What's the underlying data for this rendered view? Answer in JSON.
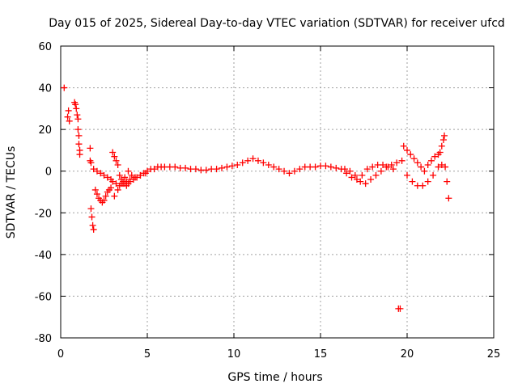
{
  "chart_data": {
    "type": "scatter",
    "title": "Day 015 of 2025, Sidereal Day-to-day VTEC variation (SDTVAR) for receiver ufcd",
    "xlabel": "GPS time / hours",
    "ylabel": "SDTVAR / TECUs",
    "xlim": [
      0,
      25
    ],
    "ylim": [
      -80,
      60
    ],
    "x_ticks": [
      0,
      5,
      10,
      15,
      20,
      25
    ],
    "y_ticks": [
      -80,
      -60,
      -40,
      -20,
      0,
      20,
      40,
      60
    ],
    "x_tick_labels": [
      "0",
      "5",
      "10",
      "15",
      "20",
      "25"
    ],
    "y_tick_labels": [
      "-80",
      "-60",
      "-40",
      "-20",
      "0",
      "20",
      "40",
      "60"
    ],
    "grid": true,
    "marker": "+",
    "colors": {
      "series": "#ff0000",
      "grid": "#a0a0a0",
      "axis": "#000000"
    },
    "series": [
      {
        "name": "SDTVAR",
        "x": [
          0.2,
          0.4,
          0.45,
          0.5,
          0.8,
          0.85,
          0.9,
          0.95,
          1.0,
          1.0,
          1.05,
          1.05,
          1.1,
          1.1,
          1.7,
          1.7,
          1.75,
          1.75,
          1.8,
          1.85,
          1.9,
          2.0,
          2.1,
          2.2,
          2.3,
          2.4,
          2.5,
          2.6,
          2.7,
          2.8,
          2.9,
          3.0,
          3.1,
          3.2,
          3.3,
          3.4,
          3.5,
          3.6,
          3.7,
          3.8,
          3.9,
          4.0,
          4.2,
          4.4,
          4.6,
          4.8,
          5.0,
          5.2,
          5.4,
          5.6,
          5.8,
          6.0,
          6.3,
          6.6,
          6.9,
          7.2,
          7.5,
          7.8,
          8.1,
          8.4,
          8.7,
          9.0,
          9.3,
          9.6,
          9.9,
          10.2,
          10.5,
          10.8,
          11.1,
          11.4,
          11.7,
          12.0,
          12.3,
          12.6,
          12.9,
          13.2,
          13.5,
          13.8,
          14.1,
          14.4,
          14.7,
          15.0,
          15.3,
          15.6,
          15.9,
          16.2,
          16.5,
          16.8,
          17.1,
          17.4,
          17.7,
          18.0,
          18.3,
          18.6,
          18.9,
          19.2,
          19.5,
          19.6,
          19.8,
          20.0,
          20.2,
          20.4,
          20.6,
          20.8,
          21.0,
          21.2,
          21.4,
          21.6,
          21.8,
          21.9,
          22.0,
          22.1,
          22.15,
          22.2,
          22.3,
          22.4,
          1.9,
          2.1,
          2.3,
          2.5,
          2.7,
          2.9,
          3.0,
          3.2,
          3.4,
          3.6,
          3.8,
          4.0,
          4.3,
          4.6,
          4.9,
          3.1,
          3.3,
          3.5,
          3.7,
          3.9,
          4.1,
          16.4,
          16.7,
          17.0,
          17.3,
          17.6,
          17.9,
          18.2,
          18.5,
          18.8,
          19.1,
          19.4,
          19.7,
          20.0,
          20.3,
          20.6,
          20.9,
          21.2,
          21.5,
          21.8,
          22.0
        ],
        "y": [
          40,
          26,
          29,
          24,
          33,
          32,
          30,
          27,
          25,
          20,
          17,
          13,
          10,
          8,
          11,
          5,
          4,
          -18,
          -22,
          -26,
          -28,
          -9,
          -11,
          -13,
          -14,
          -15,
          -14,
          -12,
          -10,
          -9,
          -8,
          9,
          7,
          5,
          3,
          -2,
          -4,
          -5,
          -6,
          -7,
          -6,
          -5,
          -4,
          -3,
          -2,
          -1,
          0,
          1,
          1,
          2,
          2,
          2,
          2,
          2,
          1.5,
          1.5,
          1,
          1,
          0.5,
          0.5,
          1,
          1,
          1.5,
          2,
          2.5,
          3,
          4,
          5,
          6,
          5,
          4,
          3,
          2,
          1,
          0,
          -1,
          0,
          1,
          2,
          2,
          2,
          2.5,
          2.5,
          2,
          1.5,
          1,
          -1,
          -3,
          -4,
          -2,
          1,
          2,
          3,
          3,
          2,
          1,
          -66,
          -66,
          12,
          10,
          8,
          6,
          4,
          2,
          0,
          3,
          5,
          7,
          8,
          9,
          12,
          15,
          17,
          2,
          -5,
          -13,
          1,
          0,
          -1,
          -2,
          -3,
          -4,
          -5,
          -6,
          -7,
          -6,
          -5,
          -4,
          -3,
          -2,
          -1,
          -12,
          -9,
          -6,
          -3,
          0,
          -2,
          1,
          0,
          -2,
          -5,
          -6,
          -4,
          -2,
          0,
          2,
          3,
          4,
          5,
          -2,
          -5,
          -7,
          -7,
          -5,
          -2,
          2,
          3
        ]
      }
    ]
  }
}
